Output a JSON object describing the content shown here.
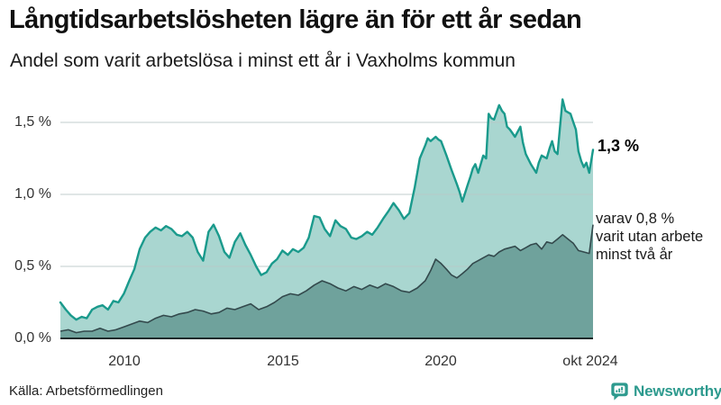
{
  "header": {
    "title": "Långtidsarbetslösheten lägre än för ett år sedan",
    "subtitle": "Andel som varit arbetslösa i minst ett år i Vaxholms kommun"
  },
  "chart_data": {
    "type": "area",
    "title": "Långtidsarbetslösheten lägre än för ett år sedan",
    "subtitle": "Andel som varit arbetslösa i minst ett år i Vaxholms kommun",
    "unit": "%",
    "grid": "horizontal",
    "x_axis": {
      "range": [
        2008,
        2024.79
      ],
      "ticks": [
        {
          "x": 2010,
          "label": "2010"
        },
        {
          "x": 2015,
          "label": "2015"
        },
        {
          "x": 2020,
          "label": "2020"
        },
        {
          "x": 2024.79,
          "label": "okt 2024"
        }
      ]
    },
    "y_axis": {
      "range": [
        0,
        1.7
      ],
      "ticks": [
        {
          "v": 0,
          "label": "0,0 %"
        },
        {
          "v": 0.5,
          "label": "0,5 %"
        },
        {
          "v": 1.0,
          "label": "1,0 %"
        },
        {
          "v": 1.5,
          "label": "1,5 %"
        }
      ]
    },
    "series": [
      {
        "name": "Andel som varit arbetslösa i minst ett år",
        "color": "#1a9a8c",
        "fill": "#a9d6d0",
        "last_value_label": "1,3 %",
        "points": [
          [
            2008.0,
            0.25
          ],
          [
            2008.17,
            0.2
          ],
          [
            2008.33,
            0.16
          ],
          [
            2008.5,
            0.13
          ],
          [
            2008.67,
            0.15
          ],
          [
            2008.83,
            0.14
          ],
          [
            2009.0,
            0.2
          ],
          [
            2009.17,
            0.22
          ],
          [
            2009.33,
            0.23
          ],
          [
            2009.5,
            0.2
          ],
          [
            2009.67,
            0.26
          ],
          [
            2009.83,
            0.25
          ],
          [
            2010.0,
            0.31
          ],
          [
            2010.17,
            0.4
          ],
          [
            2010.33,
            0.48
          ],
          [
            2010.5,
            0.62
          ],
          [
            2010.67,
            0.7
          ],
          [
            2010.83,
            0.74
          ],
          [
            2011.0,
            0.77
          ],
          [
            2011.17,
            0.75
          ],
          [
            2011.33,
            0.78
          ],
          [
            2011.5,
            0.76
          ],
          [
            2011.67,
            0.72
          ],
          [
            2011.83,
            0.71
          ],
          [
            2012.0,
            0.74
          ],
          [
            2012.17,
            0.7
          ],
          [
            2012.33,
            0.6
          ],
          [
            2012.5,
            0.54
          ],
          [
            2012.67,
            0.74
          ],
          [
            2012.83,
            0.79
          ],
          [
            2013.0,
            0.71
          ],
          [
            2013.17,
            0.6
          ],
          [
            2013.33,
            0.56
          ],
          [
            2013.5,
            0.67
          ],
          [
            2013.67,
            0.73
          ],
          [
            2013.83,
            0.65
          ],
          [
            2014.0,
            0.58
          ],
          [
            2014.17,
            0.5
          ],
          [
            2014.33,
            0.44
          ],
          [
            2014.5,
            0.46
          ],
          [
            2014.67,
            0.52
          ],
          [
            2014.83,
            0.55
          ],
          [
            2015.0,
            0.61
          ],
          [
            2015.17,
            0.58
          ],
          [
            2015.33,
            0.62
          ],
          [
            2015.5,
            0.6
          ],
          [
            2015.67,
            0.63
          ],
          [
            2015.83,
            0.7
          ],
          [
            2016.0,
            0.85
          ],
          [
            2016.17,
            0.84
          ],
          [
            2016.33,
            0.76
          ],
          [
            2016.5,
            0.71
          ],
          [
            2016.67,
            0.82
          ],
          [
            2016.83,
            0.78
          ],
          [
            2017.0,
            0.76
          ],
          [
            2017.17,
            0.7
          ],
          [
            2017.33,
            0.69
          ],
          [
            2017.5,
            0.71
          ],
          [
            2017.67,
            0.74
          ],
          [
            2017.83,
            0.72
          ],
          [
            2018.0,
            0.77
          ],
          [
            2018.17,
            0.83
          ],
          [
            2018.33,
            0.88
          ],
          [
            2018.5,
            0.94
          ],
          [
            2018.67,
            0.89
          ],
          [
            2018.83,
            0.83
          ],
          [
            2019.0,
            0.87
          ],
          [
            2019.17,
            1.05
          ],
          [
            2019.33,
            1.25
          ],
          [
            2019.5,
            1.34
          ],
          [
            2019.58,
            1.39
          ],
          [
            2019.67,
            1.37
          ],
          [
            2019.83,
            1.4
          ],
          [
            2019.92,
            1.38
          ],
          [
            2020.0,
            1.37
          ],
          [
            2020.17,
            1.27
          ],
          [
            2020.33,
            1.17
          ],
          [
            2020.5,
            1.07
          ],
          [
            2020.58,
            1.02
          ],
          [
            2020.67,
            0.95
          ],
          [
            2020.83,
            1.06
          ],
          [
            2020.92,
            1.12
          ],
          [
            2021.0,
            1.18
          ],
          [
            2021.08,
            1.21
          ],
          [
            2021.17,
            1.15
          ],
          [
            2021.33,
            1.27
          ],
          [
            2021.42,
            1.25
          ],
          [
            2021.5,
            1.56
          ],
          [
            2021.58,
            1.53
          ],
          [
            2021.67,
            1.52
          ],
          [
            2021.83,
            1.62
          ],
          [
            2021.92,
            1.58
          ],
          [
            2022.0,
            1.56
          ],
          [
            2022.08,
            1.47
          ],
          [
            2022.17,
            1.45
          ],
          [
            2022.33,
            1.4
          ],
          [
            2022.5,
            1.47
          ],
          [
            2022.58,
            1.36
          ],
          [
            2022.67,
            1.28
          ],
          [
            2022.83,
            1.21
          ],
          [
            2023.0,
            1.15
          ],
          [
            2023.08,
            1.22
          ],
          [
            2023.17,
            1.27
          ],
          [
            2023.33,
            1.25
          ],
          [
            2023.42,
            1.32
          ],
          [
            2023.5,
            1.37
          ],
          [
            2023.58,
            1.3
          ],
          [
            2023.67,
            1.28
          ],
          [
            2023.83,
            1.66
          ],
          [
            2023.92,
            1.58
          ],
          [
            2024.0,
            1.57
          ],
          [
            2024.08,
            1.56
          ],
          [
            2024.17,
            1.5
          ],
          [
            2024.25,
            1.45
          ],
          [
            2024.33,
            1.3
          ],
          [
            2024.42,
            1.23
          ],
          [
            2024.5,
            1.19
          ],
          [
            2024.58,
            1.22
          ],
          [
            2024.67,
            1.15
          ],
          [
            2024.79,
            1.31
          ]
        ]
      },
      {
        "name": "varav varit utan arbete minst två år",
        "color": "#33494c",
        "fill": "#6fa29c",
        "last_value_label": "varav 0,8 %",
        "points": [
          [
            2008.0,
            0.05
          ],
          [
            2008.25,
            0.06
          ],
          [
            2008.5,
            0.04
          ],
          [
            2008.75,
            0.05
          ],
          [
            2009.0,
            0.05
          ],
          [
            2009.25,
            0.07
          ],
          [
            2009.5,
            0.05
          ],
          [
            2009.75,
            0.06
          ],
          [
            2010.0,
            0.08
          ],
          [
            2010.25,
            0.1
          ],
          [
            2010.5,
            0.12
          ],
          [
            2010.75,
            0.11
          ],
          [
            2011.0,
            0.14
          ],
          [
            2011.25,
            0.16
          ],
          [
            2011.5,
            0.15
          ],
          [
            2011.75,
            0.17
          ],
          [
            2012.0,
            0.18
          ],
          [
            2012.25,
            0.2
          ],
          [
            2012.5,
            0.19
          ],
          [
            2012.75,
            0.17
          ],
          [
            2013.0,
            0.18
          ],
          [
            2013.25,
            0.21
          ],
          [
            2013.5,
            0.2
          ],
          [
            2013.75,
            0.22
          ],
          [
            2014.0,
            0.24
          ],
          [
            2014.25,
            0.2
          ],
          [
            2014.5,
            0.22
          ],
          [
            2014.75,
            0.25
          ],
          [
            2015.0,
            0.29
          ],
          [
            2015.25,
            0.31
          ],
          [
            2015.5,
            0.3
          ],
          [
            2015.75,
            0.33
          ],
          [
            2016.0,
            0.37
          ],
          [
            2016.25,
            0.4
          ],
          [
            2016.5,
            0.38
          ],
          [
            2016.75,
            0.35
          ],
          [
            2017.0,
            0.33
          ],
          [
            2017.25,
            0.36
          ],
          [
            2017.5,
            0.34
          ],
          [
            2017.75,
            0.37
          ],
          [
            2018.0,
            0.35
          ],
          [
            2018.25,
            0.38
          ],
          [
            2018.5,
            0.36
          ],
          [
            2018.75,
            0.33
          ],
          [
            2019.0,
            0.32
          ],
          [
            2019.25,
            0.35
          ],
          [
            2019.5,
            0.4
          ],
          [
            2019.67,
            0.47
          ],
          [
            2019.83,
            0.55
          ],
          [
            2020.0,
            0.52
          ],
          [
            2020.17,
            0.48
          ],
          [
            2020.33,
            0.44
          ],
          [
            2020.5,
            0.42
          ],
          [
            2020.67,
            0.45
          ],
          [
            2020.83,
            0.48
          ],
          [
            2021.0,
            0.52
          ],
          [
            2021.17,
            0.54
          ],
          [
            2021.33,
            0.56
          ],
          [
            2021.5,
            0.58
          ],
          [
            2021.67,
            0.57
          ],
          [
            2021.83,
            0.6
          ],
          [
            2022.0,
            0.62
          ],
          [
            2022.17,
            0.63
          ],
          [
            2022.33,
            0.64
          ],
          [
            2022.5,
            0.61
          ],
          [
            2022.67,
            0.63
          ],
          [
            2022.83,
            0.65
          ],
          [
            2023.0,
            0.66
          ],
          [
            2023.17,
            0.62
          ],
          [
            2023.33,
            0.67
          ],
          [
            2023.5,
            0.66
          ],
          [
            2023.67,
            0.69
          ],
          [
            2023.83,
            0.72
          ],
          [
            2024.0,
            0.69
          ],
          [
            2024.17,
            0.66
          ],
          [
            2024.33,
            0.61
          ],
          [
            2024.5,
            0.6
          ],
          [
            2024.67,
            0.59
          ],
          [
            2024.79,
            0.79
          ]
        ]
      }
    ],
    "annotations": {
      "series1_end": {
        "text": "1,3 %"
      },
      "series2_end": {
        "lines": [
          "varav 0,8 %",
          "varit utan arbete",
          "minst två år"
        ]
      }
    },
    "legend": "none"
  },
  "footer": {
    "source": "Källa: Arbetsförmedlingen",
    "brand": "Newsworthy"
  },
  "colors": {
    "line_primary": "#1a9a8c",
    "fill_primary": "#a9d6d0",
    "line_secondary": "#33494c",
    "fill_secondary": "#6fa29c",
    "gridline": "#d9d9d9",
    "axis": "#1f2a2b",
    "brand_teal": "#2d9a8e"
  }
}
